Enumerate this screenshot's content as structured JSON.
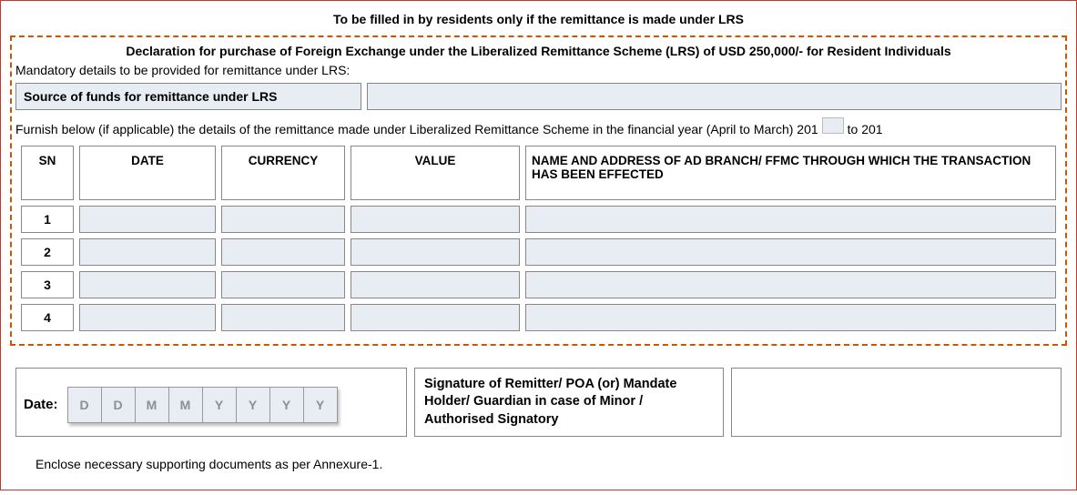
{
  "top_heading": "To be filled in by residents only if the remittance is made under  LRS",
  "declaration_heading": "Declaration for purchase of Foreign Exchange under the Liberalized Remittance Scheme (LRS) of USD 250,000/- for Resident Individuals",
  "mandatory_text": "Mandatory details to be provided for remittance under LRS:",
  "source_label": "Source of funds for remittance under LRS",
  "source_value": "",
  "furnish_pre": "Furnish below (if applicable) the details of the remittance made under Liberalized Remittance Scheme in the  financial year (April to March) 201",
  "furnish_mid": " to 201",
  "year1": "",
  "year2": "",
  "table": {
    "headers": {
      "sn": "SN",
      "date": "DATE",
      "currency": "CURRENCY",
      "value": "VALUE",
      "bank": "NAME AND ADDRESS OF AD BRANCH/ FFMC THROUGH WHICH THE TRANSACTION HAS BEEN EFFECTED"
    },
    "rows": [
      {
        "sn": "1",
        "date": "",
        "currency": "",
        "value": "",
        "bank": ""
      },
      {
        "sn": "2",
        "date": "",
        "currency": "",
        "value": "",
        "bank": ""
      },
      {
        "sn": "3",
        "date": "",
        "currency": "",
        "value": "",
        "bank": ""
      },
      {
        "sn": "4",
        "date": "",
        "currency": "",
        "value": "",
        "bank": ""
      }
    ]
  },
  "date_field": {
    "label": "Date:",
    "placeholders": [
      "D",
      "D",
      "M",
      "M",
      "Y",
      "Y",
      "Y",
      "Y"
    ]
  },
  "signature_label": "Signature of Remitter/ POA (or) Mandate Holder/ Guardian in case of Minor / Authorised Signatory",
  "annex_note": "Enclose necessary supporting documents as per Annexure-1.",
  "colors": {
    "outer_border": "#c0392b",
    "dashed_border": "#d35400",
    "cell_border": "#888888",
    "fill_bg": "#e8ecf3",
    "placeholder_text": "#8a8f99"
  }
}
